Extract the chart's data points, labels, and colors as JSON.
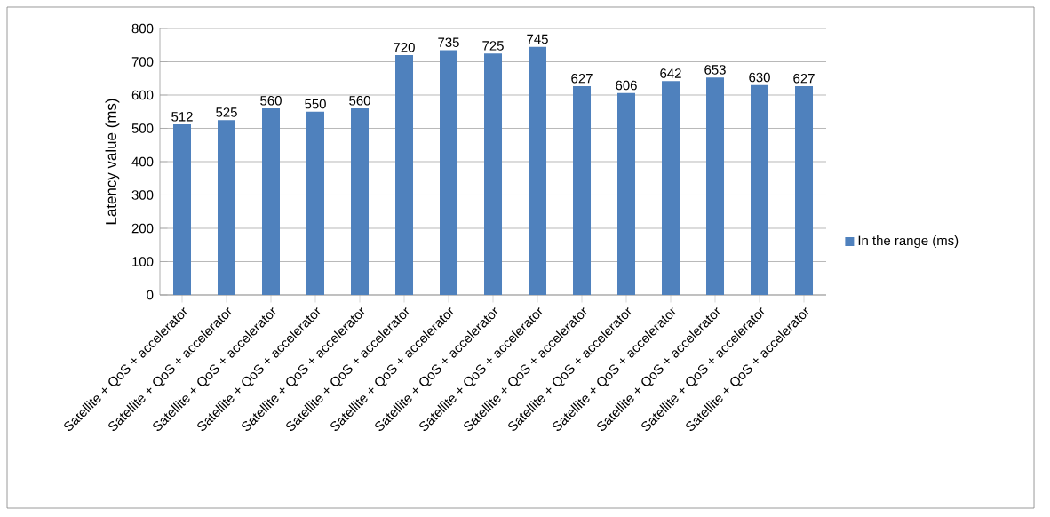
{
  "chart_data": {
    "type": "bar",
    "ylabel": "Latency value (ms)",
    "categories": [
      "Satellite + QoS + accelerator",
      "Satellite + QoS + accelerator",
      "Satellite + QoS + accelerator",
      "Satellite + QoS + accelerator",
      "Satellite + QoS + accelerator",
      "Satellite + QoS + accelerator",
      "Satellite + QoS + accelerator",
      "Satellite + QoS + accelerator",
      "Satellite + QoS + accelerator",
      "Satellite + QoS + accelerator",
      "Satellite + QoS + accelerator",
      "Satellite + QoS + accelerator",
      "Satellite + QoS + accelerator",
      "Satellite + QoS + accelerator",
      "Satellite + QoS + accelerator"
    ],
    "series": [
      {
        "name": "In the range (ms)",
        "color": "#4f81bd",
        "values": [
          512,
          525,
          560,
          550,
          560,
          720,
          735,
          725,
          745,
          627,
          606,
          642,
          653,
          630,
          627
        ]
      }
    ],
    "ylim": [
      0,
      800
    ],
    "yticks": [
      0,
      100,
      200,
      300,
      400,
      500,
      600,
      700,
      800
    ],
    "grid": "y",
    "legend": "right",
    "data_labels": true
  }
}
